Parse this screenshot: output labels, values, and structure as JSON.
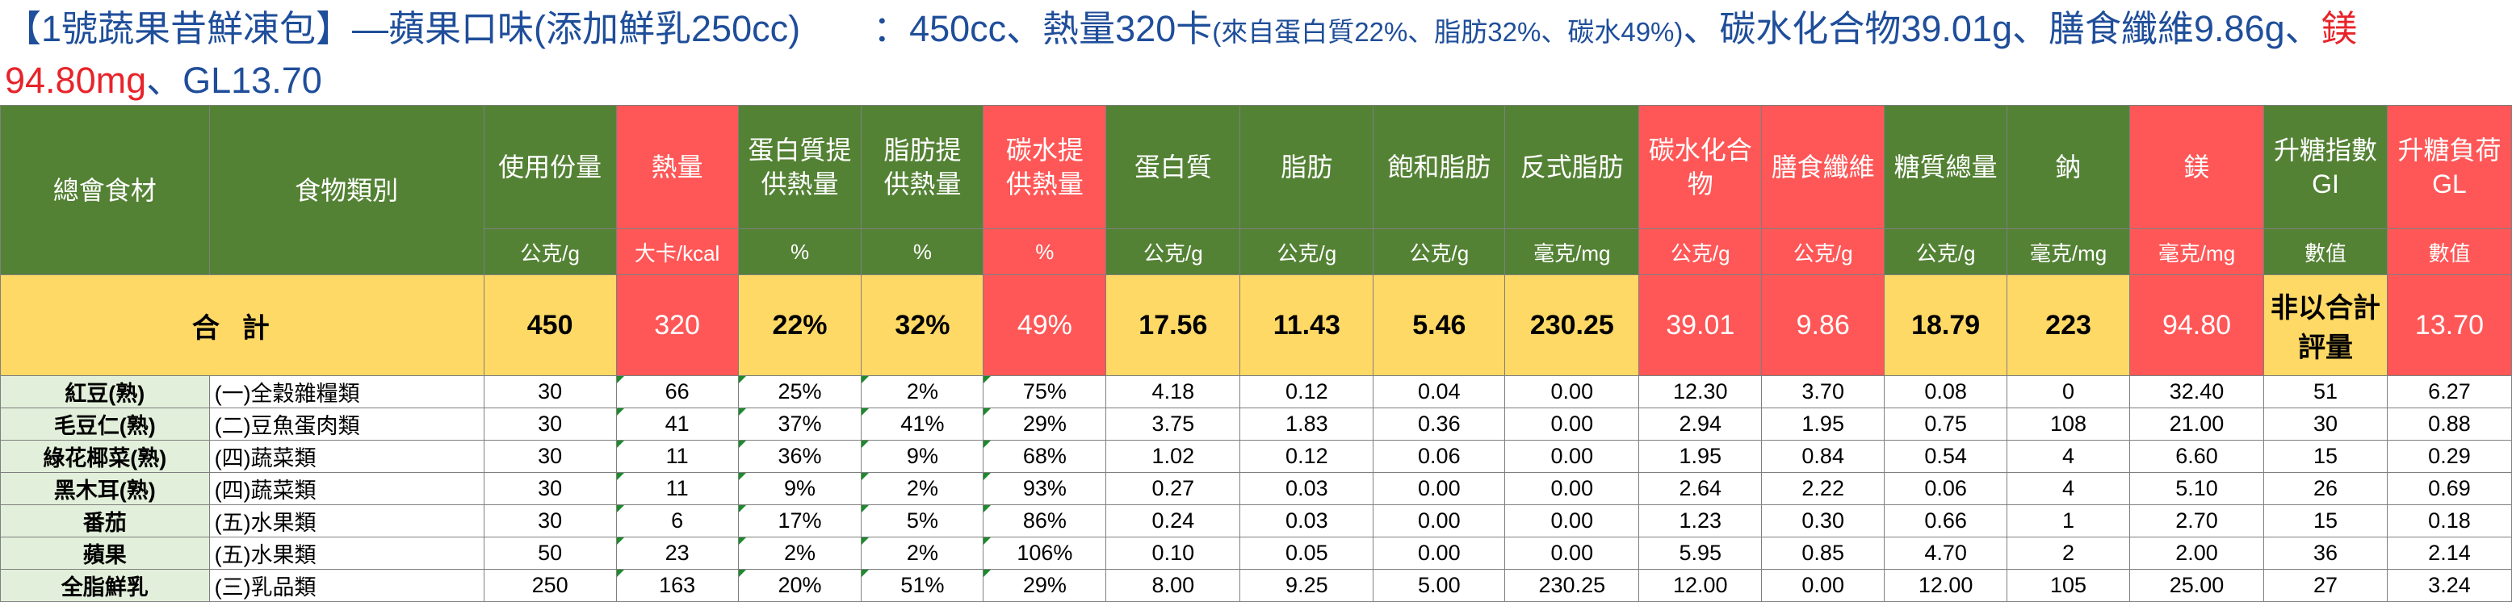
{
  "title": {
    "part1": "【1號蔬果昔鮮凍包】—蘋果口味(添加鮮乳250cc)　　：450cc、熱量320卡",
    "part2": "(來自蛋白質22%、脂肪32%、碳水49%)",
    "part3": "、碳水化合物39.01g、膳食纖維9.86g、",
    "part4": "鎂94.80mg",
    "part5": "、GL13.70"
  },
  "headers": [
    "總會食材",
    "食物類別",
    "使用份量",
    "熱量",
    "蛋白質提供熱量",
    "脂肪提供熱量",
    "碳水提供熱量",
    "蛋白質",
    "脂肪",
    "飽和脂肪",
    "反式脂肪",
    "碳水化合物",
    "膳食纖維",
    "糖質總量",
    "鈉",
    "鎂",
    "升糖指數GI",
    "升糖負荷GL"
  ],
  "units": [
    "公克/g",
    "大卡/kcal",
    "%",
    "%",
    "%",
    "公克/g",
    "公克/g",
    "公克/g",
    "毫克/mg",
    "公克/g",
    "公克/g",
    "公克/g",
    "毫克/mg",
    "毫克/mg",
    "數值",
    "數值"
  ],
  "total": {
    "label": "合計",
    "values": [
      "450",
      "320",
      "22%",
      "32%",
      "49%",
      "17.56",
      "11.43",
      "5.46",
      "230.25",
      "39.01",
      "9.86",
      "18.79",
      "223",
      "94.80",
      "非以合計評量",
      "13.70"
    ]
  },
  "rows": [
    {
      "food": "紅豆(熟)",
      "cat": "(一)全穀雜糧類",
      "v": [
        "30",
        "66",
        "25%",
        "2%",
        "75%",
        "4.18",
        "0.12",
        "0.04",
        "0.00",
        "12.30",
        "3.70",
        "0.08",
        "0",
        "32.40",
        "51",
        "6.27"
      ]
    },
    {
      "food": "毛豆仁(熟)",
      "cat": "(二)豆魚蛋肉類",
      "v": [
        "30",
        "41",
        "37%",
        "41%",
        "29%",
        "3.75",
        "1.83",
        "0.36",
        "0.00",
        "2.94",
        "1.95",
        "0.75",
        "108",
        "21.00",
        "30",
        "0.88"
      ]
    },
    {
      "food": "綠花椰菜(熟)",
      "cat": "(四)蔬菜類",
      "v": [
        "30",
        "11",
        "36%",
        "9%",
        "68%",
        "1.02",
        "0.12",
        "0.06",
        "0.00",
        "1.95",
        "0.84",
        "0.54",
        "4",
        "6.60",
        "15",
        "0.29"
      ]
    },
    {
      "food": "黑木耳(熟)",
      "cat": "(四)蔬菜類",
      "v": [
        "30",
        "11",
        "9%",
        "2%",
        "93%",
        "0.27",
        "0.03",
        "0.00",
        "0.00",
        "2.64",
        "2.22",
        "0.06",
        "4",
        "5.10",
        "26",
        "0.69"
      ]
    },
    {
      "food": "番茄",
      "cat": "(五)水果類",
      "v": [
        "30",
        "6",
        "17%",
        "5%",
        "86%",
        "0.24",
        "0.03",
        "0.00",
        "0.00",
        "1.23",
        "0.30",
        "0.66",
        "1",
        "2.70",
        "15",
        "0.18"
      ]
    },
    {
      "food": "蘋果",
      "cat": "(五)水果類",
      "v": [
        "50",
        "23",
        "2%",
        "2%",
        "106%",
        "0.10",
        "0.05",
        "0.00",
        "0.00",
        "5.95",
        "0.85",
        "4.70",
        "2",
        "2.00",
        "36",
        "2.14"
      ]
    },
    {
      "food": "全脂鮮乳",
      "cat": "(三)乳品類",
      "v": [
        "250",
        "163",
        "20%",
        "51%",
        "29%",
        "8.00",
        "9.25",
        "5.00",
        "230.25",
        "12.00",
        "0.00",
        "12.00",
        "105",
        "25.00",
        "27",
        "3.24"
      ]
    }
  ]
}
